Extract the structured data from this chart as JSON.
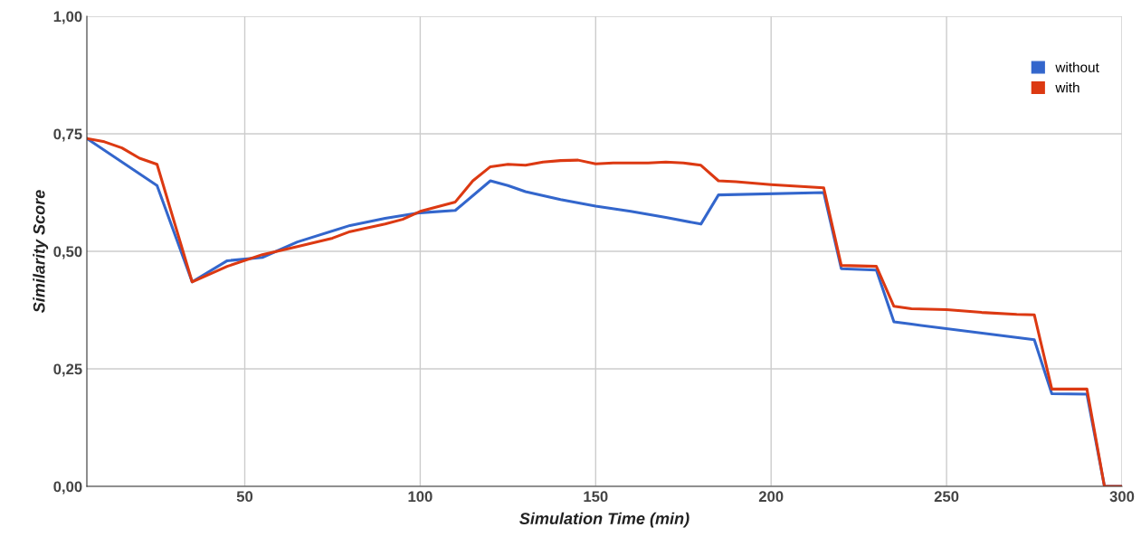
{
  "chart_data": {
    "type": "line",
    "xlabel": "Simulation Time (min)",
    "ylabel": "Similarity Score",
    "xlim": [
      5,
      300
    ],
    "xticks": [
      50,
      100,
      150,
      200,
      250,
      300
    ],
    "ylim": [
      0,
      1
    ],
    "yticks": [
      {
        "value": 0,
        "label": "0,00"
      },
      {
        "value": 0.25,
        "label": "0,25"
      },
      {
        "value": 0.5,
        "label": "0,50"
      },
      {
        "value": 0.75,
        "label": "0,75"
      },
      {
        "value": 1,
        "label": "1,00"
      }
    ],
    "grid": true,
    "legend": "top right",
    "marker": "none",
    "line_style": "solid",
    "series": [
      {
        "name": "without",
        "color": "#3366cc",
        "x": [
          5,
          25,
          35,
          45,
          55,
          65,
          80,
          90,
          100,
          110,
          120,
          125,
          130,
          140,
          150,
          160,
          170,
          180,
          185,
          215,
          220,
          230,
          235,
          240,
          275,
          280,
          290,
          295,
          300
        ],
        "values": [
          0.74,
          0.64,
          0.435,
          0.48,
          0.487,
          0.52,
          0.555,
          0.57,
          0.582,
          0.587,
          0.65,
          0.64,
          0.627,
          0.61,
          0.596,
          0.585,
          0.572,
          0.558,
          0.62,
          0.625,
          0.463,
          0.46,
          0.35,
          0.345,
          0.312,
          0.197,
          0.196,
          0.0,
          0.0
        ]
      },
      {
        "name": "with",
        "color": "#dc3912",
        "x": [
          5,
          10,
          15,
          20,
          25,
          35,
          45,
          55,
          65,
          75,
          80,
          90,
          95,
          100,
          110,
          115,
          120,
          125,
          130,
          135,
          140,
          145,
          150,
          155,
          165,
          170,
          175,
          180,
          185,
          190,
          200,
          215,
          220,
          230,
          235,
          240,
          250,
          260,
          270,
          275,
          280,
          290,
          295,
          300
        ],
        "values": [
          0.74,
          0.733,
          0.72,
          0.698,
          0.685,
          0.435,
          0.468,
          0.493,
          0.51,
          0.528,
          0.542,
          0.558,
          0.568,
          0.585,
          0.605,
          0.65,
          0.68,
          0.685,
          0.683,
          0.69,
          0.693,
          0.694,
          0.686,
          0.688,
          0.688,
          0.69,
          0.688,
          0.683,
          0.65,
          0.648,
          0.642,
          0.635,
          0.47,
          0.468,
          0.383,
          0.378,
          0.376,
          0.37,
          0.366,
          0.365,
          0.207,
          0.207,
          0.0,
          0.0
        ]
      }
    ]
  }
}
